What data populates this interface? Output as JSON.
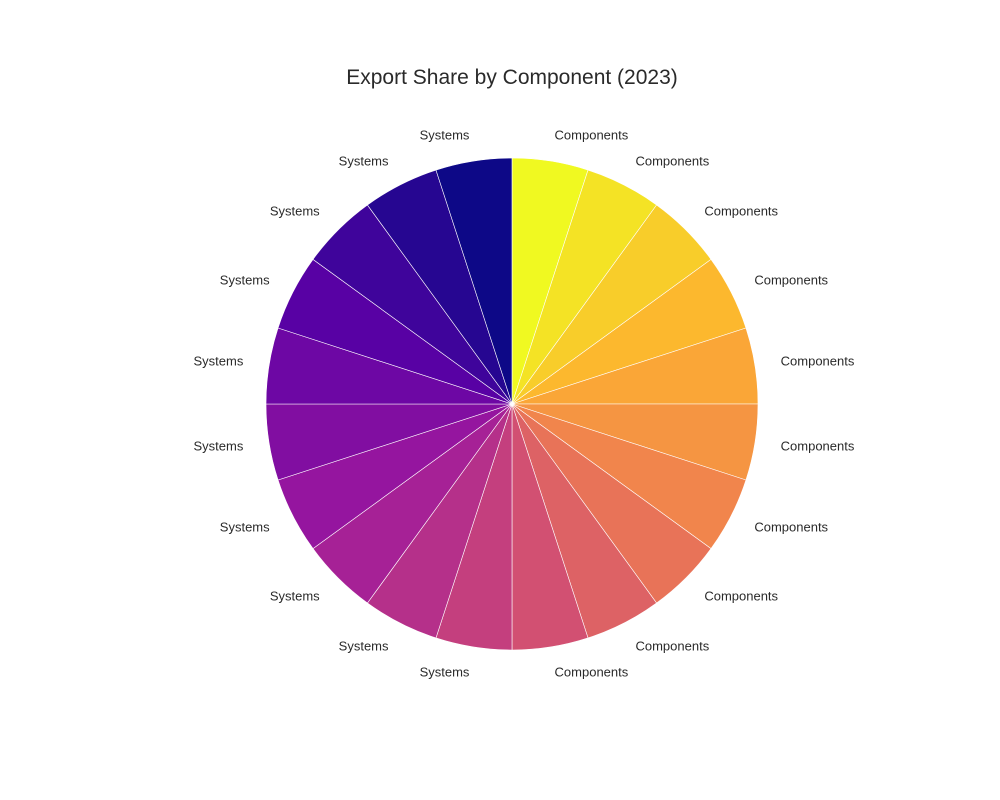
{
  "chart_data": {
    "type": "pie",
    "title": "Export Share by Component (2023)",
    "labels": [
      "Components",
      "Components",
      "Components",
      "Components",
      "Components",
      "Components",
      "Components",
      "Components",
      "Components",
      "Components",
      "Systems",
      "Systems",
      "Systems",
      "Systems",
      "Systems",
      "Systems",
      "Systems",
      "Systems",
      "Systems",
      "Systems"
    ],
    "values": [
      5,
      5,
      5,
      5,
      5,
      5,
      5,
      5,
      5,
      5,
      5,
      5,
      5,
      5,
      5,
      5,
      5,
      5,
      5,
      5
    ],
    "colorscale": [
      "#f0f921",
      "#fdb42f",
      "#f07f4f",
      "#cc4778",
      "#9c179e",
      "#5c01a6",
      "#0d0887"
    ],
    "direction": "clockwise",
    "start_angle_deg": 90,
    "legend": "none"
  }
}
